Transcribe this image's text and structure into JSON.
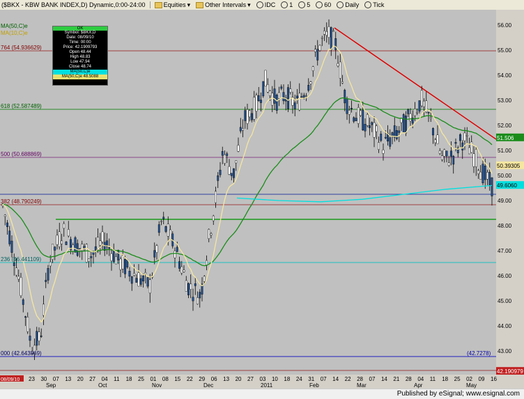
{
  "toolbar": {
    "symbol_label": "($BKX - KBW BANK INDEX,D) Dynamic,0:00-24:00",
    "equities": "Equities",
    "other_intervals": "Other Intervals",
    "idc": "IDC",
    "i1": "1",
    "i5": "5",
    "i60": "60",
    "daily": "Daily",
    "tick": "Tick"
  },
  "legend": {
    "ma50": "MA(50,C)e",
    "ma10": "MA(10,C)e"
  },
  "infobox": {
    "ok": "OK",
    "symbol": "Symbol: $BKX,D",
    "date": "Date: 08/09/10",
    "time": "Time: 00:00",
    "price": "Price: 42.1909793",
    "open": "Open 48.44",
    "high": "High 48.83",
    "low": "Low 47.94",
    "close": "Close 48.74",
    "ma_c": "MA(50,C)e",
    "ma_y": "MA(50,C)e 48.5088"
  },
  "fib_labels": {
    "l764": "764 (54.936629)",
    "l618": "618 (52.587489)",
    "l500": "500 (50.688869)",
    "l382": "382 (48.790249)",
    "l236": "236 (46.441109)",
    "l000": "000 (42.643869)",
    "l4272": "(42.7278)"
  },
  "price_axis": {
    "ticks": [
      "56.00",
      "55.00",
      "54.00",
      "53.00",
      "52.00",
      "51.00",
      "50.00",
      "49.00",
      "48.00",
      "47.00",
      "46.00",
      "45.00",
      "44.00",
      "43.00"
    ],
    "badge_green": "51.506",
    "badge_yellow": "50.39305",
    "badge_cyan": "49.6060",
    "badge_red": "42.190979"
  },
  "date_axis": {
    "start_badge": "08/09/10",
    "days": [
      "23",
      "30",
      "07",
      "13",
      "20",
      "27",
      "04",
      "11",
      "18",
      "25",
      "01",
      "08",
      "15",
      "22",
      "29",
      "06",
      "13",
      "20",
      "27",
      "03",
      "10",
      "18",
      "24",
      "31",
      "07",
      "14",
      "22",
      "28",
      "07",
      "14",
      "21",
      "28",
      "04",
      "11",
      "18",
      "25",
      "02",
      "09",
      "16"
    ],
    "months": [
      "Sep",
      "Oct",
      "Nov",
      "Dec",
      "2011",
      "Feb",
      "Mar",
      "Apr",
      "May"
    ]
  },
  "footer": {
    "text": "Published by eSignal; www.esignal.com"
  },
  "colors": {
    "candle_up": "#ffffff",
    "candle_down": "#1f4e8c",
    "ma50": "#1a8c1a",
    "ma10": "#f5e6a0",
    "cyan": "#00e0e0",
    "trendline": "#e00000"
  }
}
